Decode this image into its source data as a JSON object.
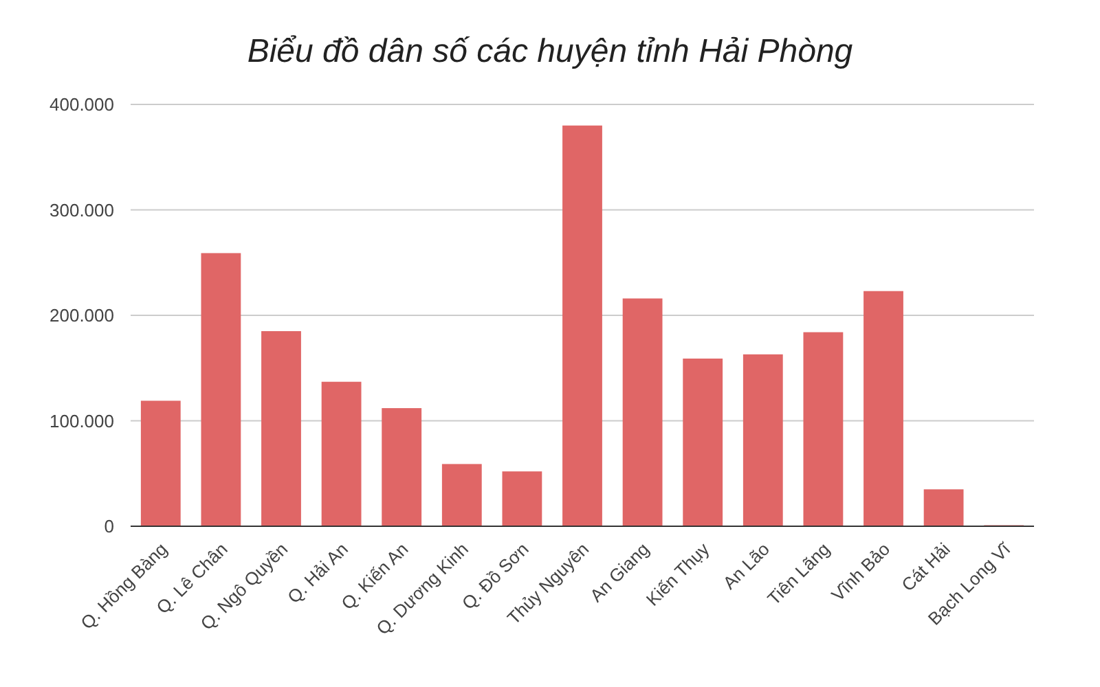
{
  "chart_data": {
    "type": "bar",
    "title": "Biểu đồ dân số các huyện tỉnh Hải Phòng",
    "categories": [
      "Q. Hồng Bàng",
      "Q. Lê Chân",
      "Q. Ngô Quyền",
      "Q. Hải An",
      "Q. Kiến An",
      "Q. Dương Kinh",
      "Q. Đồ Sơn",
      "Thủy Nguyên",
      "An Giang",
      "Kiến Thụy",
      "An Lão",
      "Tiên Lãng",
      "Vĩnh Bảo",
      "Cát Hải",
      "Bạch Long Vĩ"
    ],
    "values": [
      119000,
      259000,
      185000,
      137000,
      112000,
      59000,
      52000,
      380000,
      216000,
      159000,
      163000,
      184000,
      223000,
      35000,
      1000
    ],
    "color": "#e06666",
    "ylim": [
      0,
      400000
    ],
    "yticks": [
      {
        "value": 0,
        "label": "0"
      },
      {
        "value": 100000,
        "label": "100.000"
      },
      {
        "value": 200000,
        "label": "200.000"
      },
      {
        "value": 300000,
        "label": "300.000"
      },
      {
        "value": 400000,
        "label": "400.000"
      }
    ],
    "grid": "y"
  }
}
